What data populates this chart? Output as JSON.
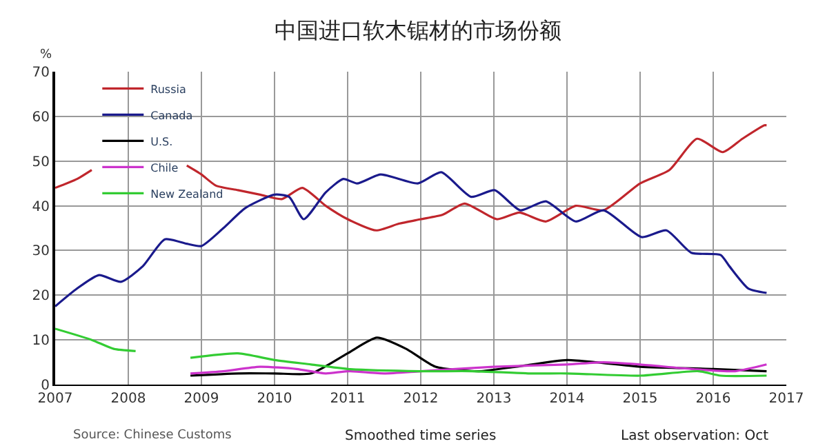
{
  "chart_data": {
    "type": "line",
    "title": "中国进口软木锯材的市场份额",
    "ylabel": "%",
    "xlim": [
      2007,
      2017
    ],
    "xticks": [
      2007,
      2008,
      2009,
      2010,
      2011,
      2012,
      2013,
      2014,
      2015,
      2016,
      2017
    ],
    "ylim": [
      0,
      70
    ],
    "yticks": [
      0,
      10,
      20,
      30,
      40,
      50,
      60,
      70
    ],
    "grid": true,
    "legend": "top left",
    "marker": "none",
    "line_style": "solid",
    "annotations": [
      "Source: Chinese Customs",
      "Smoothed time series",
      "Last observation: Oct"
    ],
    "series": [
      {
        "name": "Russia",
        "color": "#c0262c",
        "x": [
          2007,
          2007.3,
          2007.5,
          2007.6,
          2008.8,
          2009.0,
          2009.2,
          2009.5,
          2009.8,
          2010.1,
          2010.38,
          2010.7,
          2011.0,
          2011.39,
          2011.7,
          2012.0,
          2012.3,
          2012.6,
          2013.04,
          2013.35,
          2013.71,
          2014.12,
          2014.5,
          2015.0,
          2015.4,
          2015.78,
          2016.13,
          2016.4,
          2016.7,
          2016.73
        ],
        "values": [
          44,
          46,
          48,
          null,
          49,
          47,
          44.5,
          43.5,
          42.5,
          41.5,
          44,
          40,
          37,
          34.5,
          36,
          37,
          38,
          40.5,
          37,
          38.5,
          36.5,
          40,
          39,
          45,
          48,
          55,
          52,
          55,
          58,
          58
        ]
      },
      {
        "name": "Canada",
        "color": "#1a1a8c",
        "x": [
          2007,
          2007.3,
          2007.6,
          2007.9,
          2008.2,
          2008.5,
          2008.8,
          2009.0,
          2009.3,
          2009.6,
          2010.0,
          2010.2,
          2010.4,
          2010.7,
          2010.94,
          2011.13,
          2011.45,
          2011.96,
          2012.28,
          2012.69,
          2013.01,
          2013.36,
          2013.71,
          2014.12,
          2014.5,
          2015.02,
          2015.36,
          2015.7,
          2016.1,
          2016.22,
          2016.48,
          2016.73
        ],
        "values": [
          17.5,
          21.5,
          24.5,
          23,
          26.5,
          32.5,
          31.5,
          31,
          35,
          39.5,
          42.5,
          42,
          37,
          43,
          46,
          45,
          47,
          45,
          47.5,
          42,
          43.5,
          39,
          41,
          36.5,
          39,
          33,
          34.5,
          29.5,
          29,
          26.5,
          21.5,
          20.5
        ]
      },
      {
        "name": "U.S.",
        "color": "#000000",
        "x": [
          2008.85,
          2009.5,
          2010.0,
          2010.5,
          2011.0,
          2011.4,
          2011.8,
          2012.2,
          2012.8,
          2013.3,
          2014.0,
          2014.4,
          2015.0,
          2016.0,
          2016.73
        ],
        "values": [
          2,
          2.5,
          2.5,
          2.5,
          7,
          10.5,
          8,
          4,
          3,
          4,
          5.5,
          5,
          4,
          3.5,
          3
        ]
      },
      {
        "name": "Chile",
        "color": "#cc33cc",
        "x": [
          2008.85,
          2009.3,
          2009.8,
          2010.3,
          2010.7,
          2011.0,
          2011.5,
          2012.0,
          2013.0,
          2014.0,
          2014.5,
          2015.0,
          2015.7,
          2016.3,
          2016.73
        ],
        "values": [
          2.5,
          3,
          4,
          3.5,
          2.5,
          3,
          2.5,
          3,
          4,
          4.5,
          5,
          4.5,
          3.5,
          3,
          4.5
        ]
      },
      {
        "name": "New Zealand",
        "color": "#33cc33",
        "x": [
          2007,
          2007.5,
          2007.8,
          2008.1,
          2008.5,
          2008.85,
          2009.5,
          2010.0,
          2010.5,
          2011.0,
          2012.0,
          2012.7,
          2013.5,
          2014.0,
          2015.0,
          2015.8,
          2016.1,
          2016.73
        ],
        "values": [
          12.5,
          10,
          8,
          7.5,
          null,
          6,
          7,
          5.5,
          4.5,
          3.5,
          3,
          3,
          2.5,
          2.5,
          2,
          3,
          2,
          2
        ]
      }
    ]
  }
}
